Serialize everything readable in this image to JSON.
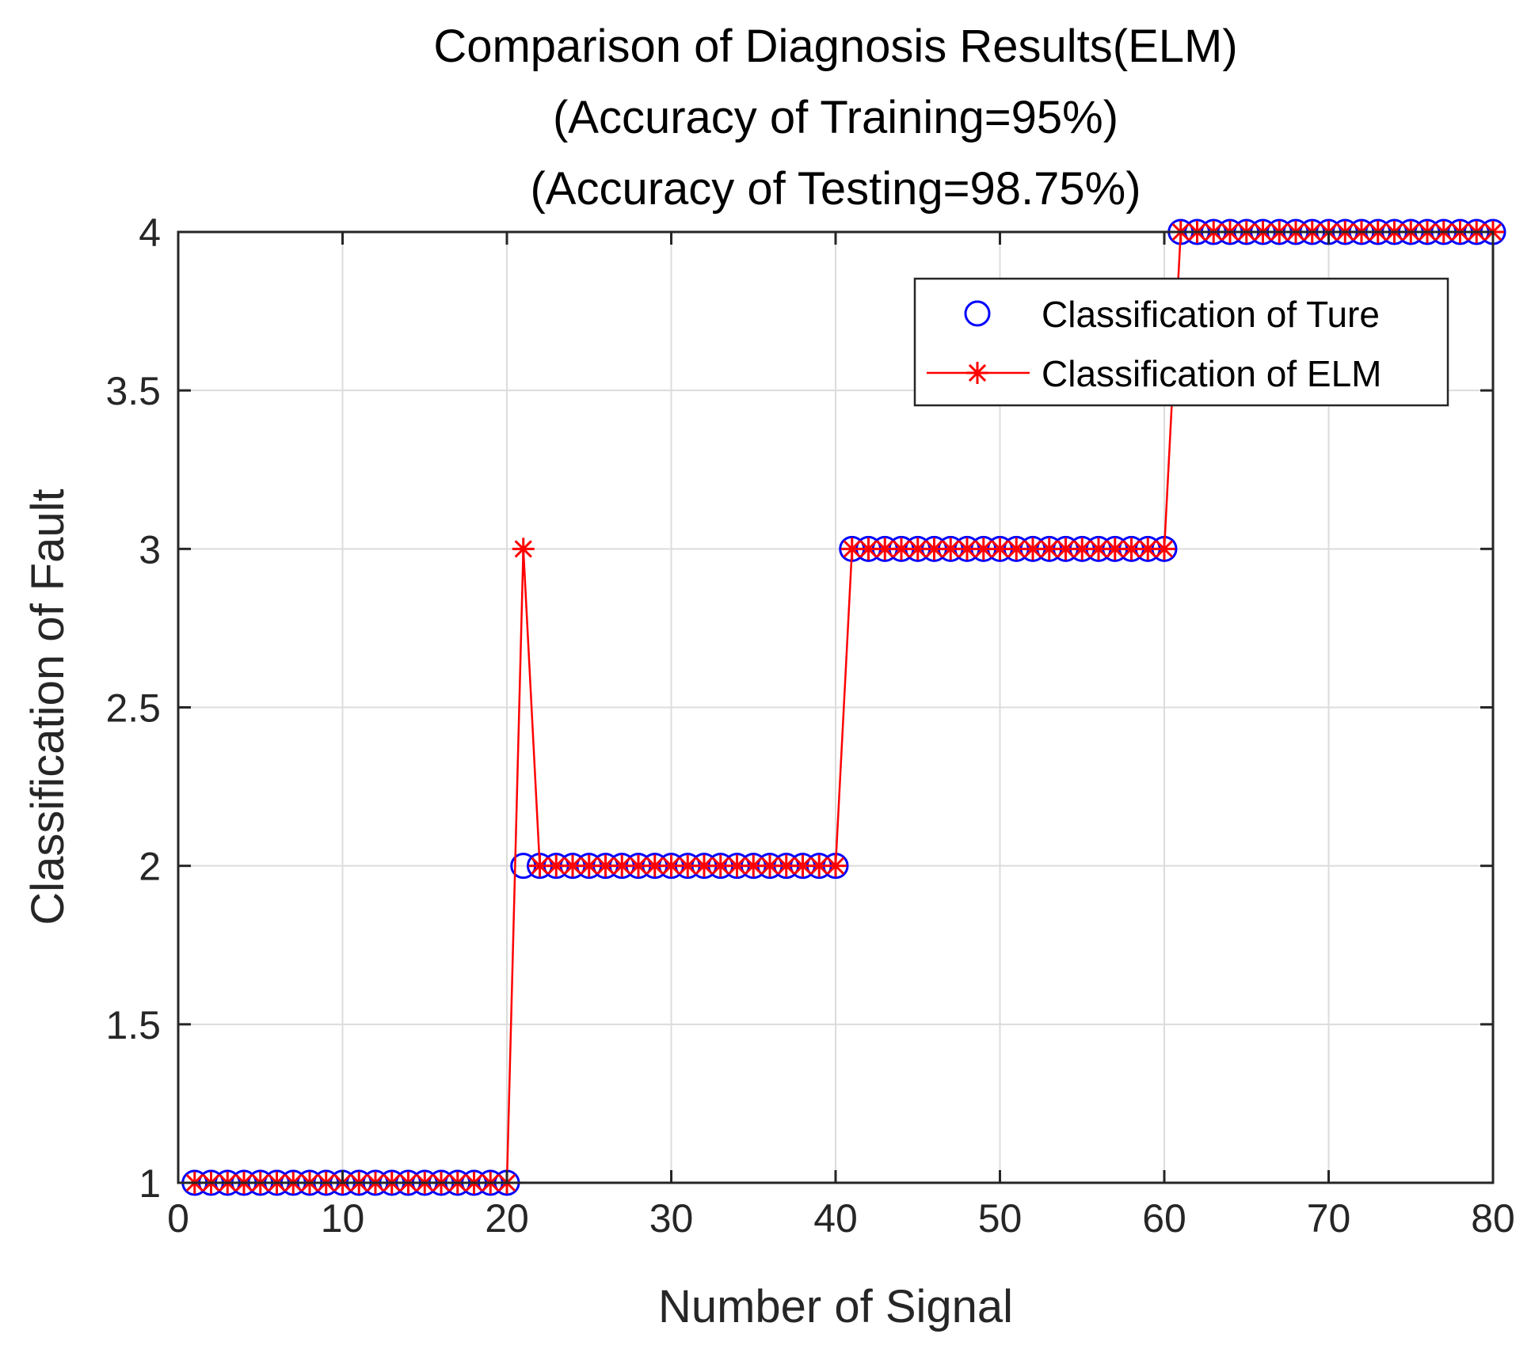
{
  "chart_data": {
    "type": "line",
    "title_lines": [
      "Comparison of Diagnosis Results(ELM)",
      "(Accuracy of Training=95%)",
      "(Accuracy of Testing=98.75%)"
    ],
    "xlabel": "Number of Signal",
    "ylabel": "Classification of Fault",
    "xlim": [
      0,
      80
    ],
    "ylim": [
      1,
      4
    ],
    "xticks": [
      0,
      10,
      20,
      30,
      40,
      50,
      60,
      70,
      80
    ],
    "xtick_labels": [
      "0",
      "10",
      "20",
      "30",
      "40",
      "50",
      "60",
      "70",
      "80"
    ],
    "yticks": [
      1,
      1.5,
      2,
      2.5,
      3,
      3.5,
      4
    ],
    "ytick_labels": [
      "1",
      "1.5",
      "2",
      "2.5",
      "3",
      "3.5",
      "4"
    ],
    "grid": true,
    "legend_position": "top-right",
    "x": [
      1,
      2,
      3,
      4,
      5,
      6,
      7,
      8,
      9,
      10,
      11,
      12,
      13,
      14,
      15,
      16,
      17,
      18,
      19,
      20,
      21,
      22,
      23,
      24,
      25,
      26,
      27,
      28,
      29,
      30,
      31,
      32,
      33,
      34,
      35,
      36,
      37,
      38,
      39,
      40,
      41,
      42,
      43,
      44,
      45,
      46,
      47,
      48,
      49,
      50,
      51,
      52,
      53,
      54,
      55,
      56,
      57,
      58,
      59,
      60,
      61,
      62,
      63,
      64,
      65,
      66,
      67,
      68,
      69,
      70,
      71,
      72,
      73,
      74,
      75,
      76,
      77,
      78,
      79,
      80
    ],
    "series": [
      {
        "name": "Classification of Ture",
        "marker": "circle",
        "line": "none",
        "color": "#0000ff",
        "values": [
          1,
          1,
          1,
          1,
          1,
          1,
          1,
          1,
          1,
          1,
          1,
          1,
          1,
          1,
          1,
          1,
          1,
          1,
          1,
          1,
          2,
          2,
          2,
          2,
          2,
          2,
          2,
          2,
          2,
          2,
          2,
          2,
          2,
          2,
          2,
          2,
          2,
          2,
          2,
          2,
          3,
          3,
          3,
          3,
          3,
          3,
          3,
          3,
          3,
          3,
          3,
          3,
          3,
          3,
          3,
          3,
          3,
          3,
          3,
          3,
          4,
          4,
          4,
          4,
          4,
          4,
          4,
          4,
          4,
          4,
          4,
          4,
          4,
          4,
          4,
          4,
          4,
          4,
          4,
          4
        ]
      },
      {
        "name": "Classification of ELM",
        "marker": "asterisk",
        "line": "solid",
        "color": "#ff0000",
        "values": [
          1,
          1,
          1,
          1,
          1,
          1,
          1,
          1,
          1,
          1,
          1,
          1,
          1,
          1,
          1,
          1,
          1,
          1,
          1,
          1,
          3,
          2,
          2,
          2,
          2,
          2,
          2,
          2,
          2,
          2,
          2,
          2,
          2,
          2,
          2,
          2,
          2,
          2,
          2,
          2,
          3,
          3,
          3,
          3,
          3,
          3,
          3,
          3,
          3,
          3,
          3,
          3,
          3,
          3,
          3,
          3,
          3,
          3,
          3,
          3,
          4,
          4,
          4,
          4,
          4,
          4,
          4,
          4,
          4,
          4,
          4,
          4,
          4,
          4,
          4,
          4,
          4,
          4,
          4,
          4
        ]
      }
    ]
  }
}
